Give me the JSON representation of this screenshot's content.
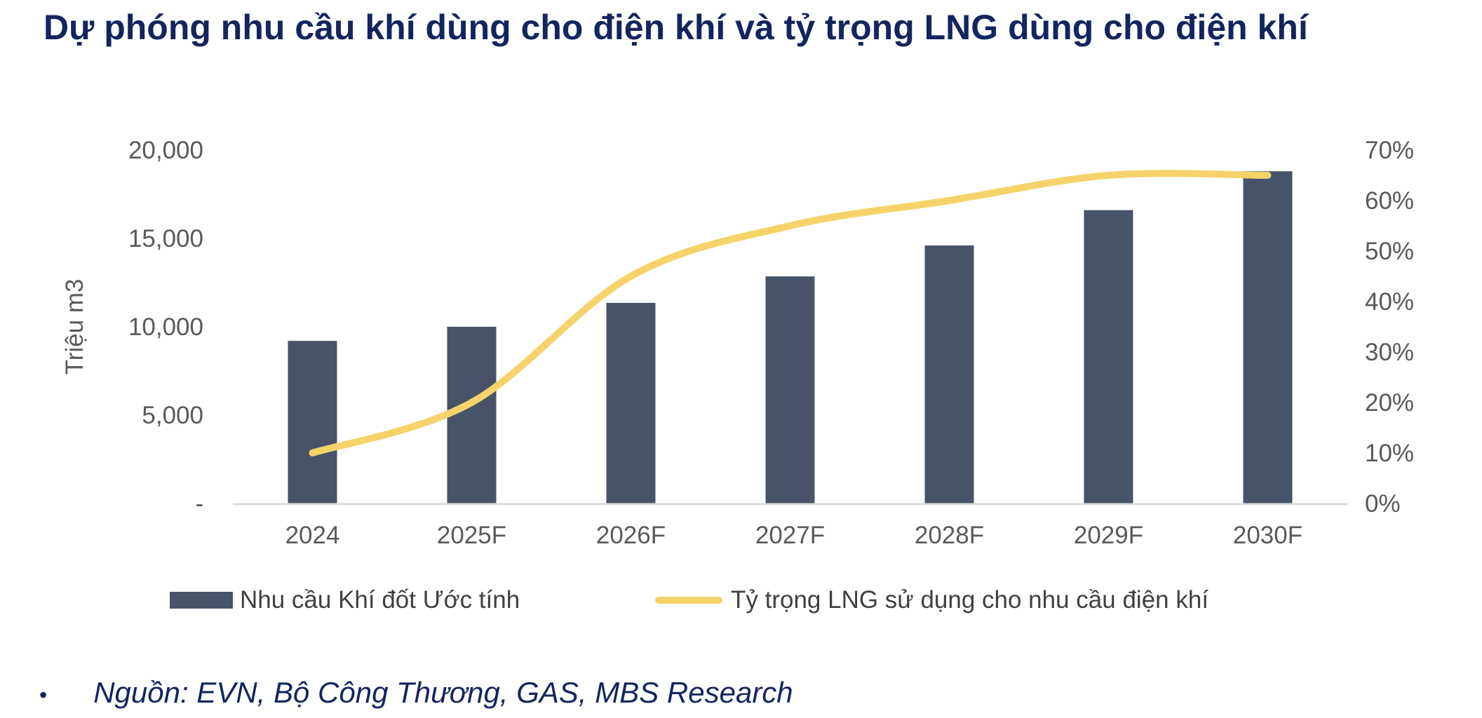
{
  "title": "Dự phóng nhu cầu khí dùng cho điện khí và tỷ trọng LNG dùng cho điện khí",
  "chart_data": {
    "type": "bar+line",
    "categories": [
      "2024",
      "2025F",
      "2026F",
      "2027F",
      "2028F",
      "2029F",
      "2030F"
    ],
    "series": [
      {
        "name": "Nhu cầu Khí đốt Ước tính",
        "type": "bar",
        "axis": "left",
        "color": "#475369",
        "values": [
          9200,
          10000,
          11350,
          12850,
          14600,
          16600,
          18800
        ]
      },
      {
        "name": "Tỷ trọng LNG sử dụng cho nhu cầu điện khí",
        "type": "line",
        "axis": "right",
        "color": "#f5d36a",
        "smooth": true,
        "values": [
          10,
          20,
          45,
          55,
          60,
          65,
          65
        ]
      }
    ],
    "ylabel": "Triệu m3",
    "ylim": [
      0,
      20000
    ],
    "y_ticks": [
      "-",
      "5,000",
      "10,000",
      "15,000",
      "20,000"
    ],
    "y2lim": [
      0,
      70
    ],
    "y2_ticks": [
      "0%",
      "10%",
      "20%",
      "30%",
      "40%",
      "50%",
      "60%",
      "70%"
    ],
    "grid": false,
    "legend": "bottom"
  },
  "source": {
    "bullet": "•",
    "text": "Nguồn: EVN, Bộ Công Thương, GAS, MBS Research"
  }
}
